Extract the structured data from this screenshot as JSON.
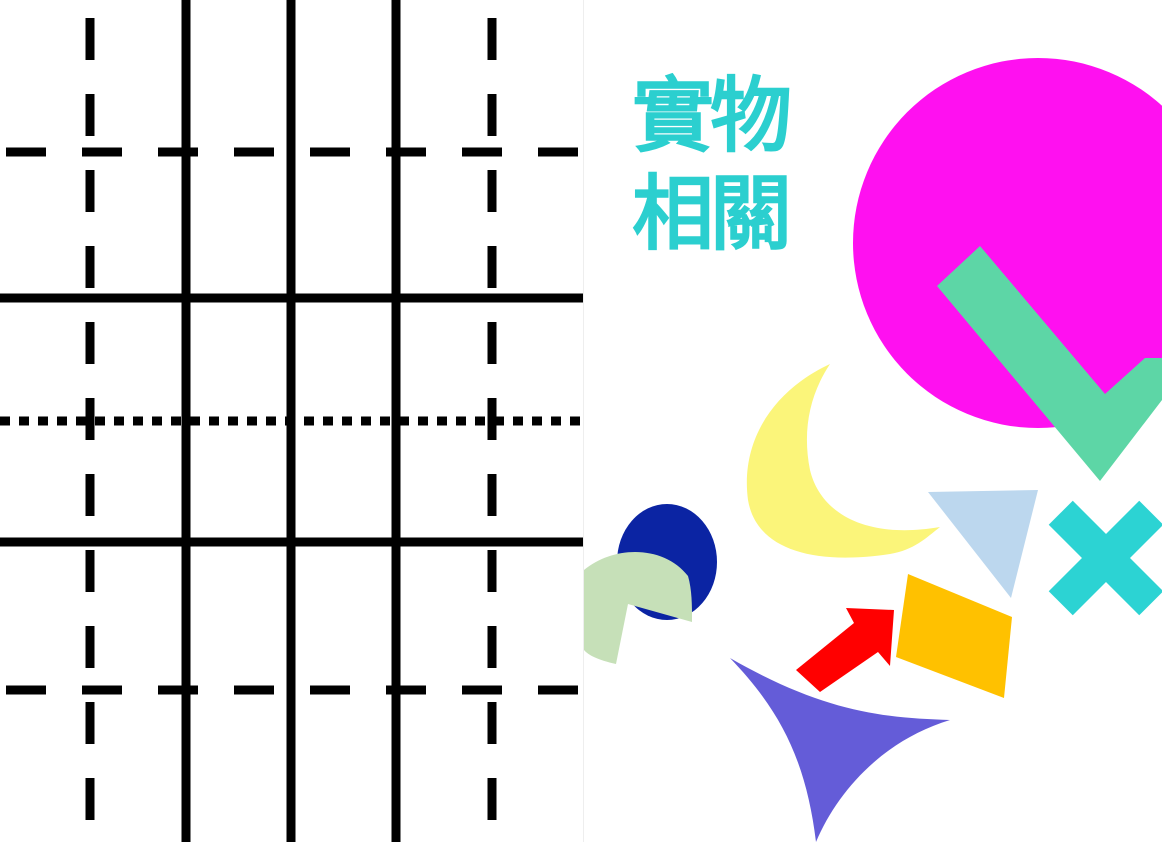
{
  "title": {
    "line1": "實物",
    "line2": "相關"
  },
  "colors": {
    "grid_line": "#000000",
    "title": "#2bcfcf",
    "magenta_circle": "#ff10f0",
    "check_mark": "#5dd6a6",
    "crescent": "#fbf57a",
    "navy_ellipse": "#0b24a3",
    "pale_green_pie": "#c6e0b8",
    "light_blue_triangle": "#bcd7ee",
    "cross": "#2cd3d3",
    "red_arrow": "#ff0000",
    "orange_parallelogram": "#ffc100",
    "purple_star_shape": "#645cd8"
  },
  "shapes": [
    "magenta-circle",
    "check-mark",
    "crescent",
    "navy-ellipse",
    "pale-green-pie",
    "light-blue-triangle",
    "cross",
    "red-arrow",
    "orange-parallelogram",
    "purple-concave-triangle"
  ]
}
